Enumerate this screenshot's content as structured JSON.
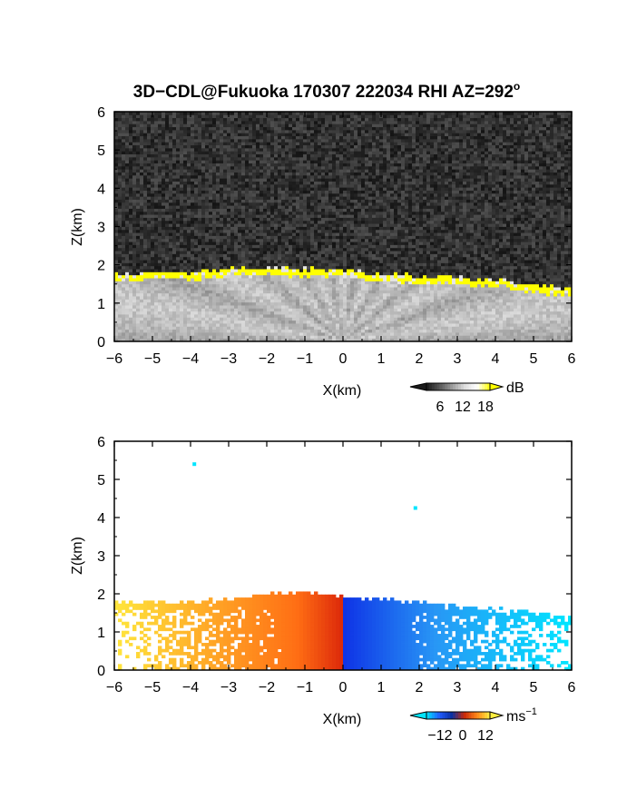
{
  "title": "3D−CDL@Fukuoka 170307 222034 RHI AZ=292",
  "title_degree": "o",
  "colors": {
    "noise_dark": "#1c1c1c",
    "cloud_top": "#ffff00",
    "positive_velocity": "#ff8800",
    "negative_velocity": "#1f5cff",
    "near_zero_velocity": "#00e5ff"
  },
  "chart_data": [
    {
      "type": "heatmap",
      "name": "reflectivity",
      "xlabel": "X(km)",
      "ylabel": "Z(km)",
      "xlim": [
        -6,
        6
      ],
      "ylim": [
        0,
        6
      ],
      "xticks": [
        -6,
        -5,
        -4,
        -3,
        -2,
        -1,
        0,
        1,
        2,
        3,
        4,
        5,
        6
      ],
      "yticks": [
        0,
        1,
        2,
        3,
        4,
        5,
        6
      ],
      "colorbar": {
        "unit": "dB",
        "ticks": [
          6,
          12,
          18
        ]
      },
      "cloud_top_km": {
        "x": [
          -6,
          -4,
          -3,
          -2,
          -1,
          0,
          1,
          2,
          3,
          4,
          5,
          6
        ],
        "z": [
          1.7,
          1.75,
          1.85,
          1.85,
          1.85,
          1.8,
          1.7,
          1.65,
          1.6,
          1.55,
          1.45,
          1.3
        ]
      }
    },
    {
      "type": "heatmap",
      "name": "doppler_velocity",
      "xlabel": "X(km)",
      "ylabel": "Z(km)",
      "xlim": [
        -6,
        6
      ],
      "ylim": [
        0,
        6
      ],
      "xticks": [
        -6,
        -5,
        -4,
        -3,
        -2,
        -1,
        0,
        1,
        2,
        3,
        4,
        5,
        6
      ],
      "yticks": [
        0,
        1,
        2,
        3,
        4,
        5,
        6
      ],
      "colorbar": {
        "unit": "ms",
        "unit_exp": "−1",
        "ticks": [
          "−12",
          "0",
          "12"
        ]
      },
      "echo_top_km": {
        "x": [
          -6,
          -4,
          -3,
          -2,
          -1,
          0,
          1,
          2,
          3,
          4,
          5,
          6
        ],
        "z": [
          1.8,
          1.8,
          1.85,
          2.0,
          2.05,
          1.9,
          1.85,
          1.75,
          1.7,
          1.6,
          1.5,
          1.4
        ]
      },
      "isolated_points": [
        {
          "x": -3.9,
          "z": 5.4
        },
        {
          "x": 1.9,
          "z": 4.25
        }
      ]
    }
  ]
}
